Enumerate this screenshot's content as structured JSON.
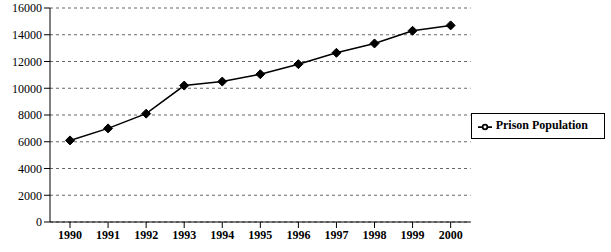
{
  "chart_data": {
    "type": "line",
    "categories": [
      "1990",
      "1991",
      "1992",
      "1993",
      "1994",
      "1995",
      "1996",
      "1997",
      "1998",
      "1999",
      "2000"
    ],
    "series": [
      {
        "name": "Prison Population",
        "color": "#000000",
        "marker": "diamond",
        "values": [
          6100,
          7000,
          8100,
          10200,
          10500,
          11050,
          11800,
          12650,
          13350,
          14300,
          14700
        ]
      }
    ],
    "ylim": [
      0,
      16000
    ],
    "yticks": [
      0,
      2000,
      4000,
      6000,
      8000,
      10000,
      12000,
      14000,
      16000
    ],
    "grid": true,
    "legend": "right"
  }
}
